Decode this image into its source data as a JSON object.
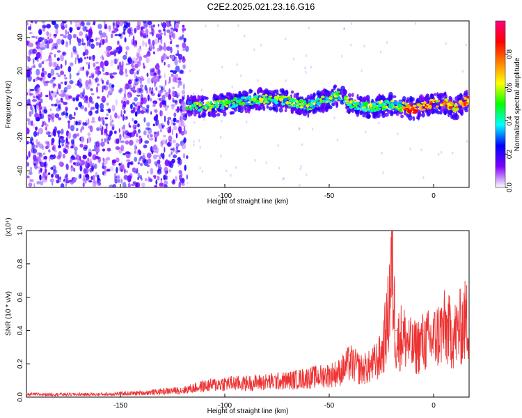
{
  "title": "C2E2.2025.021.23.16.G16",
  "chart_data": [
    {
      "type": "heatmap",
      "xlabel": "Height of straight line (km)",
      "ylabel": "Frequency (Hz)",
      "xlim": [
        -195,
        17
      ],
      "ylim": [
        -50,
        50
      ],
      "xticks": [
        -150,
        -100,
        -50,
        0
      ],
      "yticks": [
        -40,
        -20,
        0,
        20,
        40
      ],
      "colorbar": {
        "label": "Normalized spectral amplitude",
        "range": [
          0,
          1
        ],
        "ticks": [
          "0.0",
          "0.2",
          "0.4",
          "0.6",
          "0.8"
        ],
        "tick_values": [
          0,
          0.2,
          0.4,
          0.6,
          0.8
        ],
        "colormap": [
          "#ffffff",
          "#8000ff",
          "#0000ff",
          "#00ffff",
          "#00ff00",
          "#ffff00",
          "#ff8000",
          "#ff0000",
          "#ff0080"
        ]
      },
      "noise_region_x": [
        -195,
        -118
      ],
      "signal_trace": {
        "x": [
          -118,
          -110,
          -100,
          -90,
          -80,
          -70,
          -60,
          -50,
          -45,
          -40,
          -30,
          -20,
          -10,
          0,
          5,
          10,
          15,
          17
        ],
        "y": [
          0,
          -2,
          0,
          2,
          3,
          2,
          -1,
          3,
          6,
          0,
          -2,
          0,
          -3,
          0,
          1,
          -3,
          2,
          2
        ]
      }
    },
    {
      "type": "line",
      "xlabel": "Height of straight line (km)",
      "ylabel": "SNR (10 * v/v)",
      "scale_label": "(x10⁴)",
      "xlim": [
        -195,
        17
      ],
      "ylim": [
        0,
        1.0
      ],
      "xticks": [
        -150,
        -100,
        -50,
        0
      ],
      "yticks": [
        "0.0",
        "0.2",
        "0.4",
        "0.6",
        "0.8",
        "1.0"
      ],
      "ytick_values": [
        0,
        0.2,
        0.4,
        0.6,
        0.8,
        1.0
      ],
      "color": "#ee3333",
      "series": [
        {
          "x": [
            -195,
            -180,
            -160,
            -140,
            -130,
            -120,
            -110,
            -100,
            -90,
            -80,
            -70,
            -60,
            -50,
            -45,
            -40,
            -35,
            -30,
            -25,
            -22,
            -20,
            -18,
            -15,
            -10,
            -5,
            0,
            5,
            10,
            15,
            17
          ],
          "y": [
            0.02,
            0.02,
            0.02,
            0.03,
            0.04,
            0.05,
            0.08,
            0.1,
            0.1,
            0.11,
            0.12,
            0.14,
            0.16,
            0.18,
            0.25,
            0.2,
            0.22,
            0.3,
            0.55,
            0.97,
            0.4,
            0.45,
            0.35,
            0.4,
            0.42,
            0.5,
            0.45,
            0.55,
            0.55
          ]
        }
      ]
    }
  ]
}
